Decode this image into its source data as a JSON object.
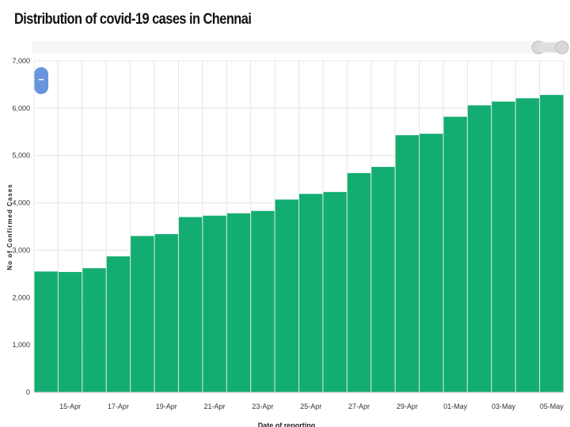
{
  "chart_data": {
    "type": "bar",
    "title": "Distribution of covid-19 cases in Chennai",
    "xlabel": "Date of reporting",
    "ylabel": "No of Confirmed Cases",
    "ylim": [
      0,
      7000
    ],
    "yticks": [
      "0",
      "1,000",
      "2,000",
      "3,000",
      "4,000",
      "5,000",
      "6,000",
      "7,000"
    ],
    "categories": [
      "14-Apr",
      "15-Apr",
      "16-Apr",
      "17-Apr",
      "18-Apr",
      "19-Apr",
      "20-Apr",
      "21-Apr",
      "22-Apr",
      "23-Apr",
      "24-Apr",
      "25-Apr",
      "26-Apr",
      "27-Apr",
      "28-Apr",
      "29-Apr",
      "30-Apr",
      "01-May",
      "02-May",
      "03-May",
      "04-May",
      "05-May"
    ],
    "xticks": [
      "15-Apr",
      "17-Apr",
      "19-Apr",
      "21-Apr",
      "23-Apr",
      "25-Apr",
      "27-Apr",
      "29-Apr",
      "01-May",
      "03-May",
      "05-May"
    ],
    "values": [
      2550,
      2540,
      2620,
      2870,
      3300,
      3340,
      3700,
      3730,
      3780,
      3830,
      4070,
      4190,
      4230,
      4630,
      4760,
      5430,
      5460,
      5820,
      6060,
      6140,
      6210,
      6280
    ],
    "grid": true,
    "colors": {
      "bar": "#13ad72",
      "grid": "#e4e4e4",
      "zoom_button": "#6794dc"
    }
  },
  "controls": {
    "zoom_out_symbol": "−"
  }
}
